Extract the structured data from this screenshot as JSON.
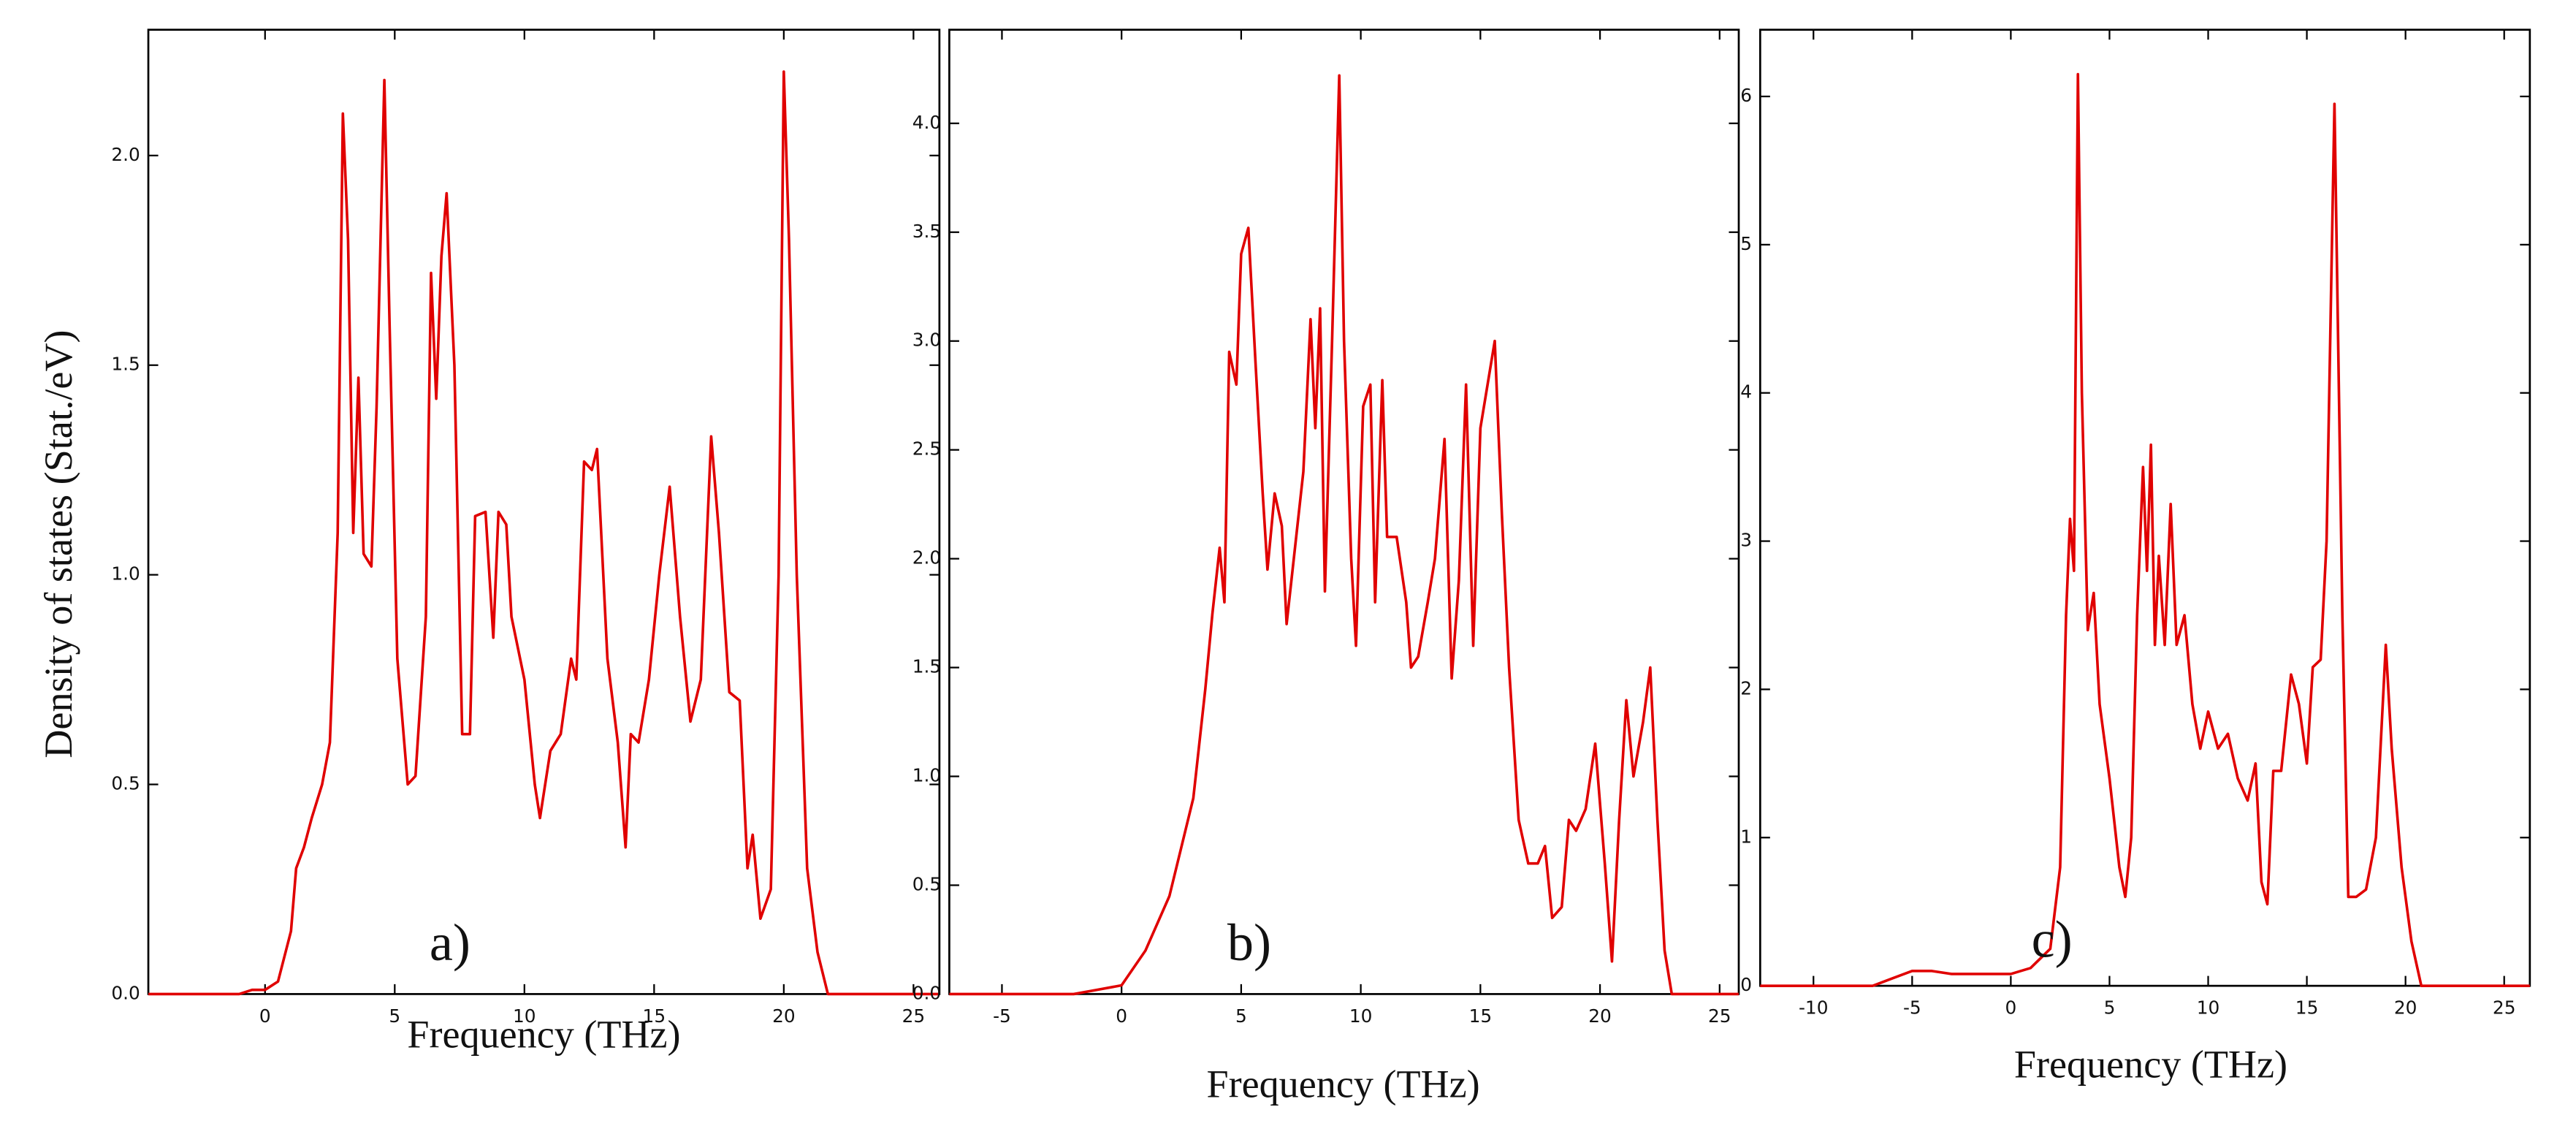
{
  "chart_data": [
    {
      "type": "line",
      "y_label": "Density of states (Stat./eV)",
      "x_label": "Frequency (THz)",
      "annotation": "a)",
      "color": "#e00000",
      "xlim": [
        -4.5,
        26
      ],
      "ylim": [
        0,
        2.3
      ],
      "xticks": [
        0,
        5,
        10,
        15,
        20,
        25
      ],
      "yticks": [
        {
          "value": 0,
          "label": "0.0"
        },
        {
          "value": 0.5,
          "label": "0.5"
        },
        {
          "value": 1,
          "label": "1.0"
        },
        {
          "value": 1.5,
          "label": "1.5"
        },
        {
          "value": 2,
          "label": "2.0"
        }
      ],
      "x": [
        -4.5,
        -1,
        -0.5,
        0,
        0.5,
        1,
        1.2,
        1.5,
        1.8,
        2.2,
        2.5,
        2.8,
        3,
        3.2,
        3.4,
        3.6,
        3.8,
        4.1,
        4.3,
        4.6,
        4.8,
        5.1,
        5.5,
        5.8,
        6.2,
        6.4,
        6.6,
        6.8,
        7,
        7.3,
        7.6,
        7.9,
        8.1,
        8.5,
        8.8,
        9,
        9.3,
        9.5,
        10,
        10.4,
        10.6,
        11,
        11.4,
        11.8,
        12,
        12.3,
        12.6,
        12.8,
        13.2,
        13.6,
        13.9,
        14.1,
        14.4,
        14.8,
        15.2,
        15.6,
        16,
        16.4,
        16.8,
        17.2,
        17.5,
        17.9,
        18.3,
        18.6,
        18.8,
        19.1,
        19.5,
        19.8,
        20,
        20.2,
        20.5,
        20.9,
        21.3,
        21.7,
        26
      ],
      "values": [
        0,
        0,
        0.01,
        0.01,
        0.03,
        0.15,
        0.3,
        0.35,
        0.42,
        0.5,
        0.6,
        1.1,
        2.1,
        1.8,
        1.1,
        1.47,
        1.05,
        1.02,
        1.4,
        2.18,
        1.6,
        0.8,
        0.5,
        0.52,
        0.9,
        1.72,
        1.42,
        1.76,
        1.91,
        1.5,
        0.62,
        0.62,
        1.14,
        1.15,
        0.85,
        1.15,
        1.12,
        0.9,
        0.75,
        0.5,
        0.42,
        0.58,
        0.62,
        0.8,
        0.75,
        1.27,
        1.25,
        1.3,
        0.8,
        0.6,
        0.35,
        0.62,
        0.6,
        0.75,
        1.0,
        1.21,
        0.9,
        0.65,
        0.75,
        1.33,
        1.1,
        0.72,
        0.7,
        0.3,
        0.38,
        0.18,
        0.25,
        1.0,
        2.2,
        1.8,
        1.0,
        0.3,
        0.1,
        0,
        0
      ]
    },
    {
      "type": "line",
      "x_label": "Frequency (THz)",
      "annotation": "b)",
      "color": "#e00000",
      "xlim": [
        -7.2,
        25.8
      ],
      "ylim": [
        0,
        4.43
      ],
      "xticks": [
        -5,
        0,
        5,
        10,
        15,
        20,
        25
      ],
      "yticks": [
        {
          "value": 0,
          "label": "0.0"
        },
        {
          "value": 0.5,
          "label": "0.5"
        },
        {
          "value": 1,
          "label": "1.0"
        },
        {
          "value": 1.5,
          "label": "1.5"
        },
        {
          "value": 2,
          "label": "2.0"
        },
        {
          "value": 2.5,
          "label": "2.5"
        },
        {
          "value": 3,
          "label": "3.0"
        },
        {
          "value": 3.5,
          "label": "3.5"
        },
        {
          "value": 4,
          "label": "4.0"
        }
      ],
      "x": [
        -7.2,
        -2,
        -1,
        0,
        1,
        2,
        3,
        3.5,
        3.8,
        4.1,
        4.3,
        4.5,
        4.8,
        5,
        5.3,
        5.6,
        5.9,
        6.1,
        6.4,
        6.7,
        6.9,
        7.2,
        7.6,
        7.9,
        8.1,
        8.3,
        8.5,
        8.8,
        9.1,
        9.3,
        9.6,
        9.8,
        10.1,
        10.4,
        10.6,
        10.9,
        11.1,
        11.5,
        11.9,
        12.1,
        12.4,
        12.8,
        13.1,
        13.5,
        13.8,
        14.1,
        14.4,
        14.7,
        15,
        15.3,
        15.6,
        15.9,
        16.2,
        16.6,
        17,
        17.4,
        17.7,
        18,
        18.4,
        18.7,
        19,
        19.4,
        19.8,
        20.2,
        20.5,
        20.8,
        21.1,
        21.4,
        21.8,
        22.1,
        22.4,
        22.7,
        23,
        25.8
      ],
      "values": [
        0,
        0,
        0.02,
        0.04,
        0.2,
        0.45,
        0.9,
        1.4,
        1.75,
        2.05,
        1.8,
        2.95,
        2.8,
        3.4,
        3.52,
        2.9,
        2.3,
        1.95,
        2.3,
        2.15,
        1.7,
        2.0,
        2.4,
        3.1,
        2.6,
        3.15,
        1.85,
        3.0,
        4.22,
        3.0,
        2.0,
        1.6,
        2.7,
        2.8,
        1.8,
        2.82,
        2.1,
        2.1,
        1.8,
        1.5,
        1.55,
        1.8,
        2.0,
        2.55,
        1.45,
        1.9,
        2.8,
        1.6,
        2.6,
        2.8,
        3.0,
        2.2,
        1.5,
        0.8,
        0.6,
        0.6,
        0.68,
        0.35,
        0.4,
        0.8,
        0.75,
        0.85,
        1.15,
        0.6,
        0.15,
        0.8,
        1.35,
        1.0,
        1.25,
        1.5,
        0.8,
        0.2,
        0,
        0
      ]
    },
    {
      "type": "line",
      "x_label": "Frequency (THz)",
      "annotation": "c)",
      "color": "#e00000",
      "xlim": [
        -12.7,
        26.3
      ],
      "ylim": [
        0,
        6.45
      ],
      "xticks": [
        -10,
        -5,
        0,
        5,
        10,
        15,
        20,
        25
      ],
      "yticks": [
        0,
        1,
        2,
        3,
        4,
        5,
        6
      ],
      "x": [
        -12.7,
        -7,
        -6,
        -5,
        -4,
        -3,
        -2,
        0,
        1,
        2,
        2.5,
        2.8,
        3,
        3.2,
        3.4,
        3.6,
        3.9,
        4.2,
        4.5,
        5,
        5.5,
        5.8,
        6.1,
        6.4,
        6.7,
        6.9,
        7.1,
        7.3,
        7.5,
        7.8,
        8.1,
        8.4,
        8.8,
        9.2,
        9.6,
        10,
        10.5,
        11,
        11.5,
        12,
        12.4,
        12.7,
        13,
        13.3,
        13.7,
        14.2,
        14.6,
        15,
        15.3,
        15.7,
        16,
        16.4,
        16.8,
        17.1,
        17.5,
        18,
        18.5,
        19,
        19.3,
        19.8,
        20.3,
        20.8,
        26.3
      ],
      "values": [
        0,
        0,
        0.05,
        0.1,
        0.1,
        0.08,
        0.08,
        0.08,
        0.12,
        0.25,
        0.8,
        2.5,
        3.15,
        2.8,
        6.15,
        4.0,
        2.4,
        2.65,
        1.9,
        1.4,
        0.8,
        0.6,
        1.0,
        2.5,
        3.5,
        2.8,
        3.65,
        2.3,
        2.9,
        2.3,
        3.25,
        2.3,
        2.5,
        1.9,
        1.6,
        1.85,
        1.6,
        1.7,
        1.4,
        1.25,
        1.5,
        0.7,
        0.55,
        1.45,
        1.45,
        2.1,
        1.9,
        1.5,
        2.15,
        2.2,
        3.0,
        5.95,
        2.5,
        0.6,
        0.6,
        0.65,
        1.0,
        2.3,
        1.6,
        0.8,
        0.3,
        0,
        0
      ]
    }
  ]
}
